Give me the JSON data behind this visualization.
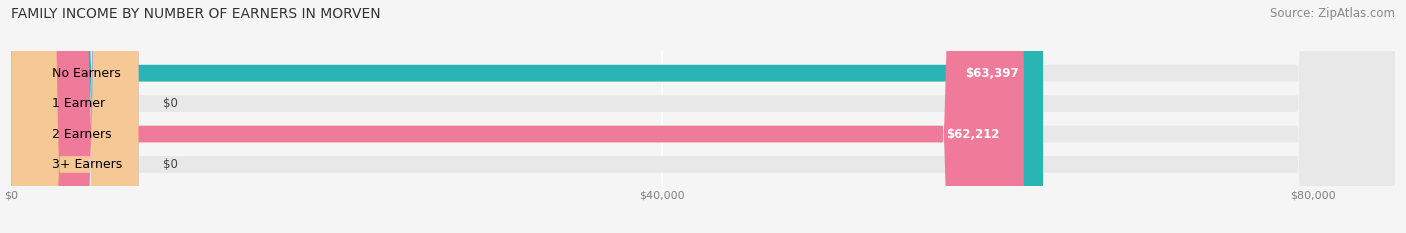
{
  "title": "FAMILY INCOME BY NUMBER OF EARNERS IN MORVEN",
  "source": "Source: ZipAtlas.com",
  "categories": [
    "No Earners",
    "1 Earner",
    "2 Earners",
    "3+ Earners"
  ],
  "values": [
    63397,
    0,
    62212,
    0
  ],
  "bar_colors": [
    "#2ab5b5",
    "#a8a8d0",
    "#f07a9a",
    "#f5c895"
  ],
  "value_labels": [
    "$63,397",
    "$0",
    "$62,212",
    "$0"
  ],
  "xlim": [
    0,
    85000
  ],
  "xticks": [
    0,
    40000,
    80000
  ],
  "xticklabels": [
    "$0",
    "$40,000",
    "$80,000"
  ],
  "bar_height": 0.55,
  "background_color": "#f5f5f5",
  "bar_bg_color": "#e8e8e8",
  "title_fontsize": 10,
  "source_fontsize": 8.5,
  "label_fontsize": 9,
  "value_fontsize": 8.5
}
